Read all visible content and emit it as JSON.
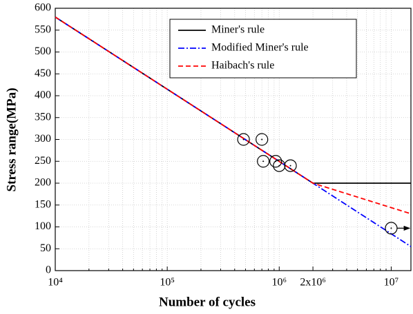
{
  "chart_data": {
    "type": "line",
    "xlabel": "Number of cycles",
    "ylabel": "Stress range(MPa)",
    "xlog": true,
    "xlim": [
      10000,
      15000000
    ],
    "ylim": [
      0,
      600
    ],
    "xticks": [
      {
        "value": 10000,
        "label": "10⁴"
      },
      {
        "value": 100000,
        "label": "10⁵"
      },
      {
        "value": 1000000,
        "label": "10⁶"
      },
      {
        "value": 2000000,
        "label": "2x10⁶"
      },
      {
        "value": 10000000,
        "label": "10⁷"
      }
    ],
    "xminorticks": [
      20000,
      30000,
      40000,
      50000,
      60000,
      70000,
      80000,
      90000,
      200000,
      300000,
      400000,
      500000,
      600000,
      700000,
      800000,
      900000,
      3000000,
      4000000,
      5000000,
      6000000,
      7000000,
      8000000,
      9000000
    ],
    "yticks": [
      0,
      50,
      100,
      150,
      200,
      250,
      300,
      350,
      400,
      450,
      500,
      550,
      600
    ],
    "grid": true,
    "legend": "top-right",
    "series": [
      {
        "name": "Miner's rule",
        "color": "#000000",
        "dash": "solid",
        "x": [
          10000,
          2000000,
          15000000
        ],
        "values": [
          580,
          200,
          200
        ]
      },
      {
        "name": "Modified Miner's rule",
        "color": "#0000ff",
        "dash": "dashdot",
        "x": [
          10000,
          2000000,
          15000000
        ],
        "values": [
          580,
          200,
          55
        ]
      },
      {
        "name": "Haibach's rule",
        "color": "#ff0000",
        "dash": "dashed",
        "x": [
          10000,
          2000000,
          15000000
        ],
        "values": [
          580,
          200,
          130
        ]
      }
    ],
    "points": {
      "x": [
        480000,
        700000,
        720000,
        930000,
        1000000,
        1260000,
        10000000
      ],
      "values": [
        300,
        300,
        250,
        250,
        240,
        240,
        97
      ],
      "color": "#000000"
    }
  }
}
